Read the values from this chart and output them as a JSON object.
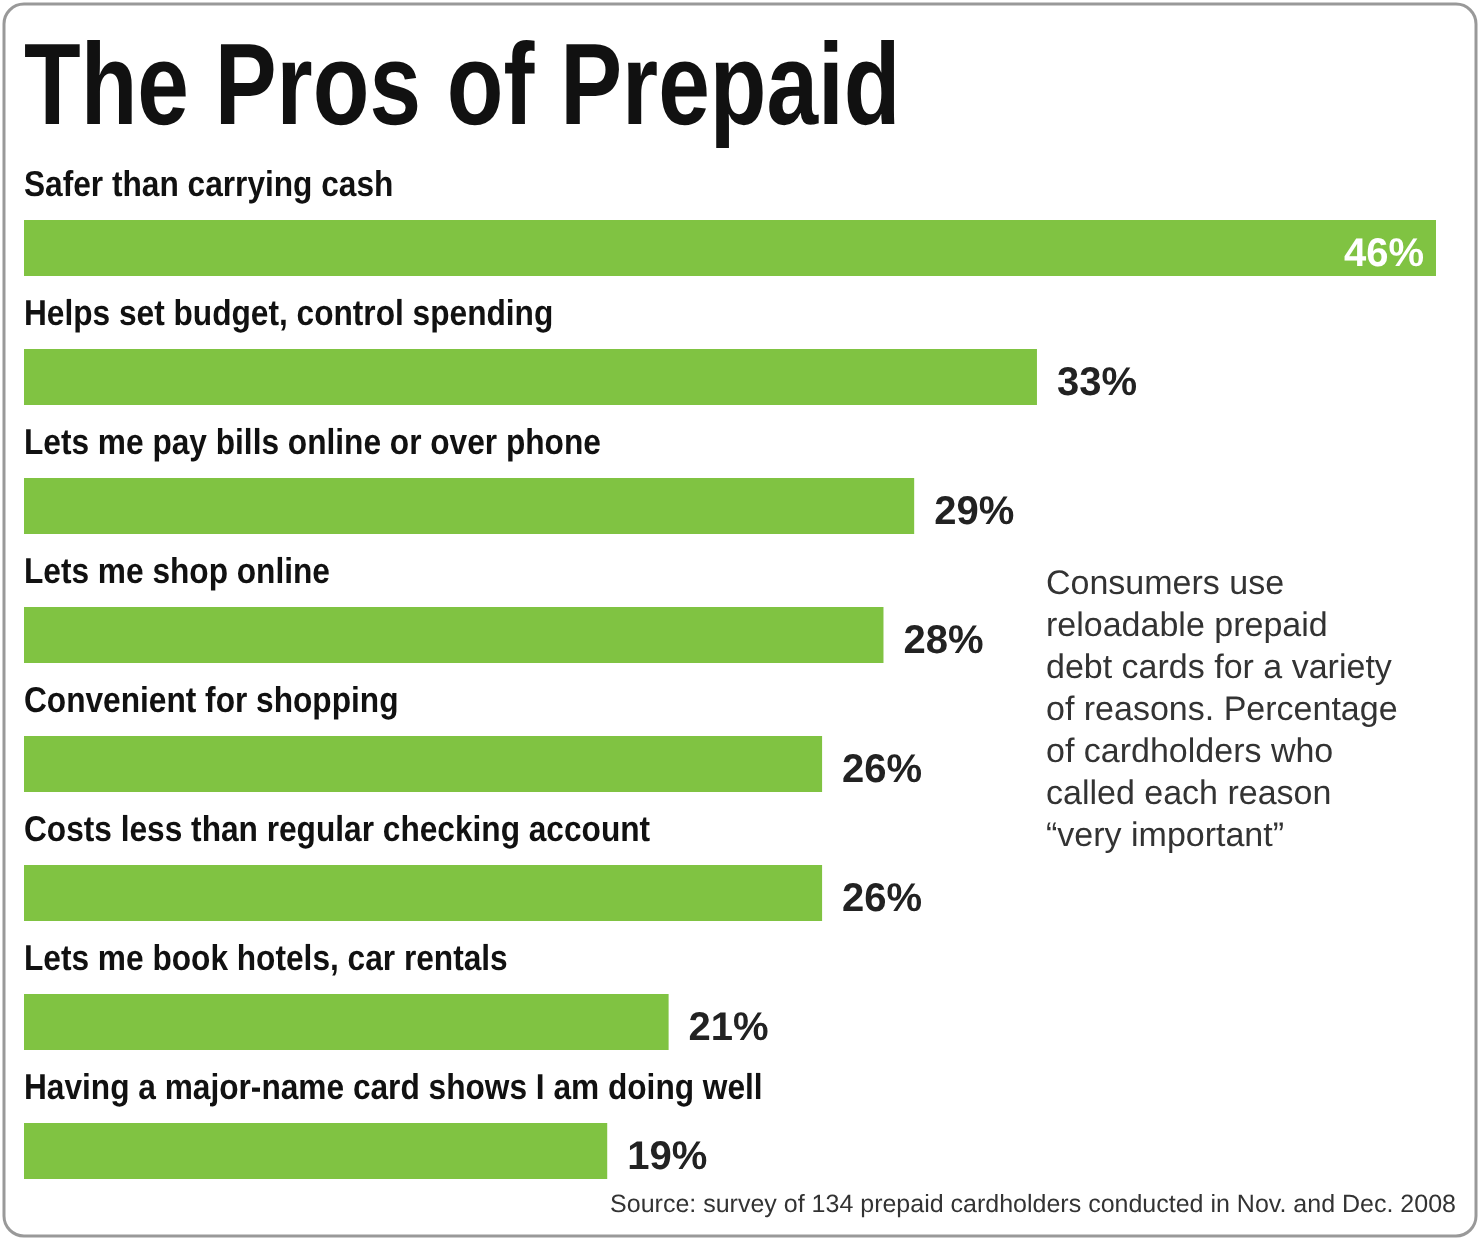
{
  "chart_data": {
    "type": "bar",
    "orientation": "horizontal",
    "title": "The Pros of Prepaid",
    "categories": [
      "Safer than carrying cash",
      "Helps set budget, control spending",
      "Lets me pay bills online or over phone",
      "Lets me shop online",
      "Convenient for shopping",
      "Costs less than regular checking account",
      "Lets me book hotels, car rentals",
      "Having a major-name card shows I am doing well"
    ],
    "values": [
      46,
      33,
      29,
      28,
      26,
      26,
      21,
      19
    ],
    "value_labels": [
      "46%",
      "33%",
      "29%",
      "28%",
      "26%",
      "26%",
      "21%",
      "19%"
    ],
    "color": "#80c342",
    "annotations": [
      "Consumers use reloadable prepaid debt cards for a variety of reasons. Percentage of cardholders who called each reason “very important”",
      "Source: survey of 134 prepaid cardholders conducted in Nov. and Dec. 2008"
    ]
  }
}
